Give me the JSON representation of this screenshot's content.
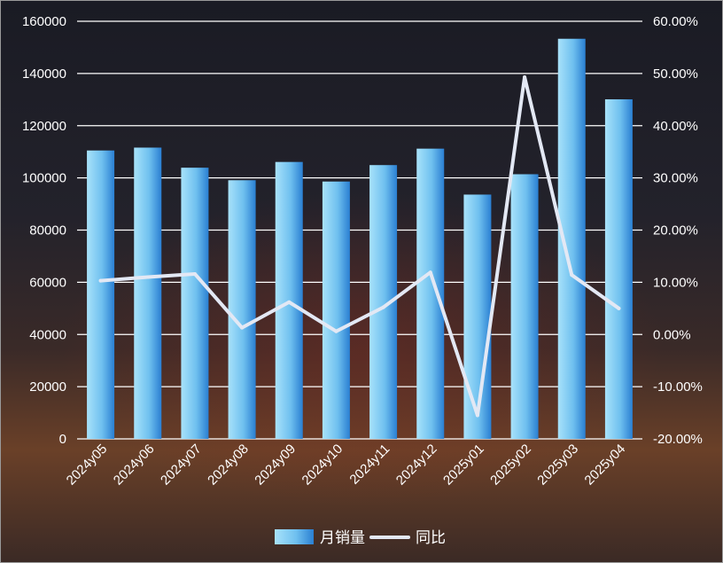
{
  "chart_data": {
    "type": "bar",
    "categories": [
      "2024y05",
      "2024y06",
      "2024y07",
      "2024y08",
      "2024y09",
      "2024y10",
      "2024y11",
      "2024y12",
      "2025y01",
      "2025y02",
      "2025y03",
      "2025y04"
    ],
    "series": [
      {
        "name": "月销量",
        "type": "bar",
        "axis": "left",
        "values": [
          110500,
          111600,
          103900,
          99100,
          106100,
          98600,
          104900,
          111200,
          93600,
          101400,
          153300,
          130100
        ]
      },
      {
        "name": "同比",
        "type": "line",
        "axis": "right",
        "values": [
          10.3,
          11.0,
          11.6,
          1.3,
          6.2,
          0.6,
          5.2,
          11.9,
          -15.5,
          49.3,
          11.4,
          5.0
        ]
      }
    ],
    "left_axis": {
      "ylim": [
        0,
        160000
      ],
      "ticks": [
        "0",
        "20000",
        "40000",
        "60000",
        "80000",
        "100000",
        "120000",
        "140000",
        "160000"
      ]
    },
    "right_axis": {
      "ylim": [
        -20,
        60
      ],
      "ticks": [
        "-20.00%",
        "-10.00%",
        "0.00%",
        "10.00%",
        "20.00%",
        "30.00%",
        "40.00%",
        "50.00%",
        "60.00%"
      ]
    },
    "legend": {
      "position": "bottom",
      "items": [
        "月销量",
        "同比"
      ]
    },
    "grid": true,
    "colors": {
      "bar_light": "#9fdcf8",
      "bar_dark": "#2f86d6",
      "line": "#e3e8f4",
      "grid": "#ffffff"
    }
  }
}
